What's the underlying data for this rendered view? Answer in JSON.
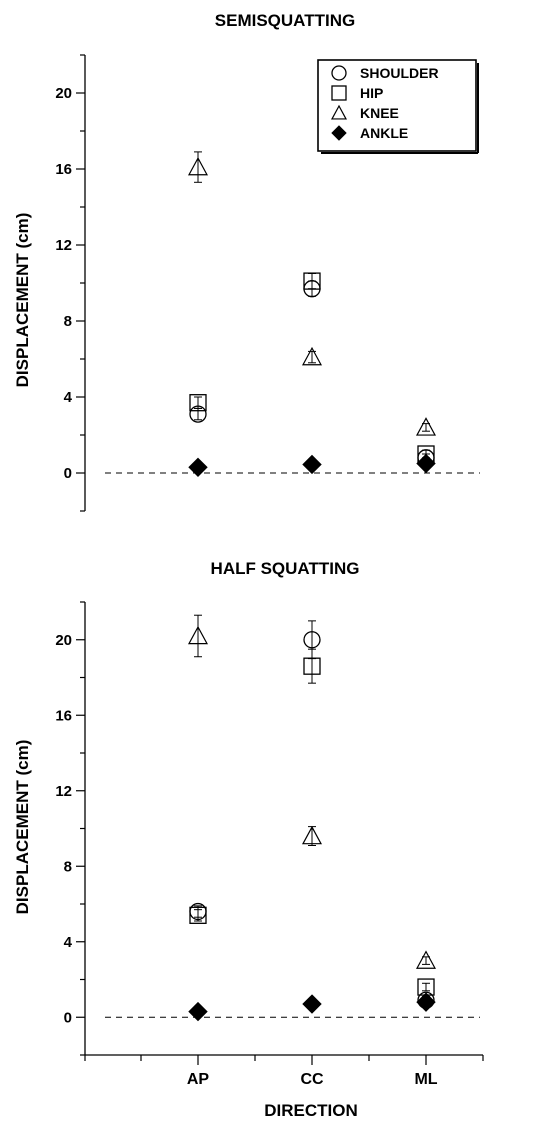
{
  "chart_data": [
    {
      "type": "scatter",
      "title": "SEMISQUATTING",
      "xlabel": "",
      "ylabel": "DISPLACEMENT (cm)",
      "categories": [
        "AP",
        "CC",
        "ML"
      ],
      "ylim": [
        -2,
        22
      ],
      "yticks": [
        0,
        4,
        8,
        12,
        16,
        20
      ],
      "legend_position": "top-right",
      "reference_line": 0,
      "series": [
        {
          "name": "SHOULDER",
          "marker": "circle",
          "values": [
            3.1,
            9.7,
            0.8
          ],
          "errors": [
            0.3,
            0.4,
            0.2
          ]
        },
        {
          "name": "HIP",
          "marker": "square",
          "values": [
            3.7,
            10.1,
            1.0
          ],
          "errors": [
            0.3,
            0.4,
            0.2
          ]
        },
        {
          "name": "KNEE",
          "marker": "triangle",
          "values": [
            16.1,
            6.1,
            2.4
          ],
          "errors": [
            0.8,
            0.3,
            0.2
          ]
        },
        {
          "name": "ANKLE",
          "marker": "diamond",
          "values": [
            0.3,
            0.45,
            0.5
          ],
          "errors": [
            0,
            0,
            0
          ]
        }
      ]
    },
    {
      "type": "scatter",
      "title": "HALF SQUATTING",
      "xlabel": "DIRECTION",
      "ylabel": "DISPLACEMENT (cm)",
      "categories": [
        "AP",
        "CC",
        "ML"
      ],
      "ylim": [
        -2,
        22
      ],
      "yticks": [
        0,
        4,
        8,
        12,
        16,
        20
      ],
      "reference_line": 0,
      "series": [
        {
          "name": "SHOULDER",
          "marker": "circle",
          "values": [
            5.6,
            20.0,
            0.9
          ],
          "errors": [
            0.3,
            1.0,
            0.2
          ]
        },
        {
          "name": "HIP",
          "marker": "square",
          "values": [
            5.4,
            18.6,
            1.6
          ],
          "errors": [
            0.3,
            0.9,
            0.2
          ]
        },
        {
          "name": "KNEE",
          "marker": "triangle",
          "values": [
            20.2,
            9.6,
            3.0
          ],
          "errors": [
            1.1,
            0.5,
            0.2
          ]
        },
        {
          "name": "ANKLE",
          "marker": "diamond",
          "values": [
            0.3,
            0.7,
            0.8
          ],
          "errors": [
            0,
            0,
            0
          ]
        }
      ]
    }
  ]
}
